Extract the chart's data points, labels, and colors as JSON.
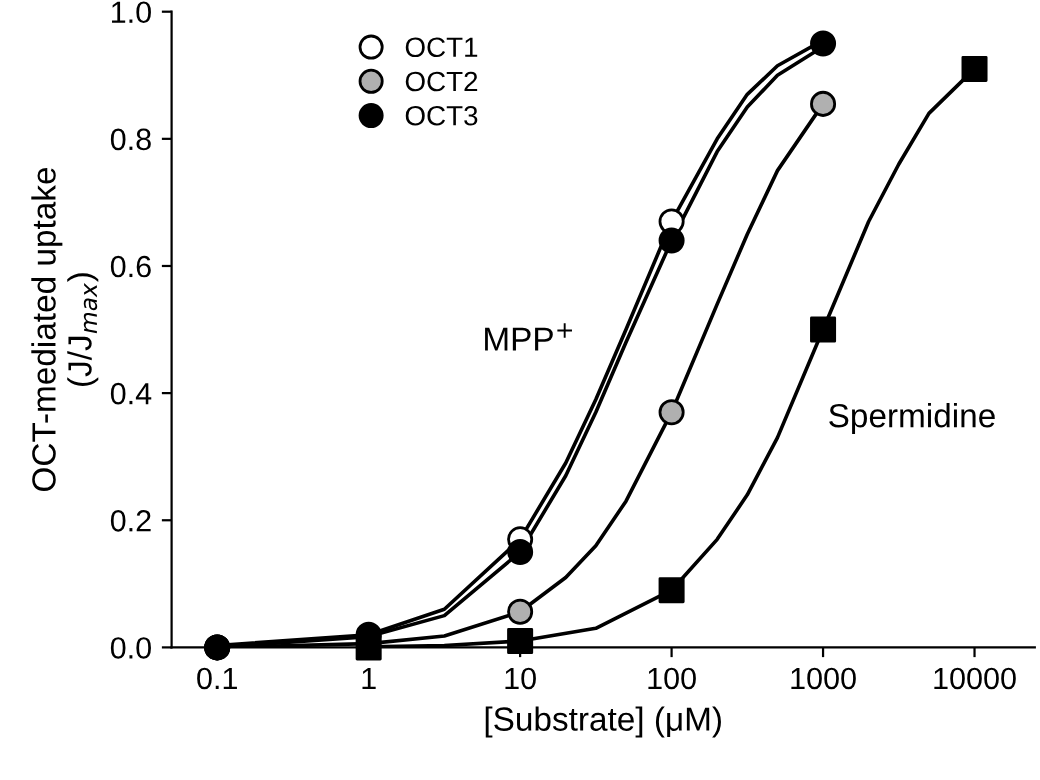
{
  "chart_data": {
    "type": "line",
    "xlabel": "[Substrate] (μM)",
    "ylabel": "OCT-mediated uptake\n(J/J$_{max}$)",
    "log": "x",
    "xlim": [
      0.05,
      25000
    ],
    "xticks": [
      0.1,
      1,
      10,
      100,
      1000,
      10000
    ],
    "ylim": [
      0,
      1.0
    ],
    "yticks": [
      {
        "value": 0,
        "label": "0.0"
      },
      0.2,
      0.4,
      0.6,
      0.8,
      {
        "value": 1.0,
        "label": "1.0"
      }
    ],
    "grid": false,
    "legend": "top left",
    "marker": "none",
    "series": [
      {
        "color": "#000000",
        "x": [
          0.1,
          1,
          3.16,
          10,
          20,
          31.6,
          50,
          100,
          200,
          316,
          500,
          1000
        ],
        "values": [
          0.003,
          0.02,
          0.06,
          0.17,
          0.29,
          0.39,
          0.5,
          0.67,
          0.8,
          0.87,
          0.915,
          0.955
        ]
      },
      {
        "color": "#000000",
        "x": [
          0.1,
          1,
          3.16,
          10,
          20,
          31.6,
          50,
          100,
          200,
          316,
          500,
          1000
        ],
        "values": [
          0,
          0.006,
          0.018,
          0.056,
          0.11,
          0.16,
          0.23,
          0.37,
          0.54,
          0.65,
          0.75,
          0.855
        ]
      },
      {
        "color": "#000000",
        "x": [
          0.1,
          1,
          3.16,
          10,
          20,
          31.6,
          50,
          100,
          200,
          316,
          500,
          1000
        ],
        "values": [
          0,
          0.017,
          0.05,
          0.15,
          0.27,
          0.37,
          0.48,
          0.64,
          0.78,
          0.85,
          0.9,
          0.945
        ]
      },
      {
        "color": "#000000",
        "x": [
          1,
          3.16,
          10,
          31.6,
          100,
          200,
          316,
          500,
          1000,
          2000,
          3160,
          5000,
          10000
        ],
        "values": [
          0.001,
          0.003,
          0.01,
          0.03,
          0.09,
          0.17,
          0.24,
          0.33,
          0.5,
          0.67,
          0.76,
          0.84,
          0.91
        ]
      },
      {
        "type": "scatter",
        "name": "OCT1",
        "color": "#ffffff",
        "marker": "circle",
        "x": [
          0.1,
          10,
          100
        ],
        "values": [
          0,
          0.17,
          0.67
        ]
      },
      {
        "type": "scatter",
        "name": "OCT2",
        "color": "#b0b0b0",
        "marker": "circle",
        "x": [
          0.1,
          1,
          10,
          100,
          1000
        ],
        "values": [
          0,
          null,
          0.056,
          0.37,
          0.855
        ]
      },
      {
        "type": "scatter",
        "name": "OCT3",
        "color": "#000000",
        "marker": "circle",
        "x": [
          0.1,
          1,
          10,
          100,
          1000
        ],
        "values": [
          0,
          0.02,
          0.15,
          0.64,
          0.95
        ]
      },
      {
        "type": "scatter",
        "color": "#000000",
        "marker": "square",
        "x": [
          1,
          10,
          100,
          1000,
          10000
        ],
        "values": [
          0,
          0.01,
          0.09,
          0.5,
          0.91
        ]
      }
    ],
    "annotations": [
      "MPP$^{+}$",
      "Spermidine"
    ]
  }
}
